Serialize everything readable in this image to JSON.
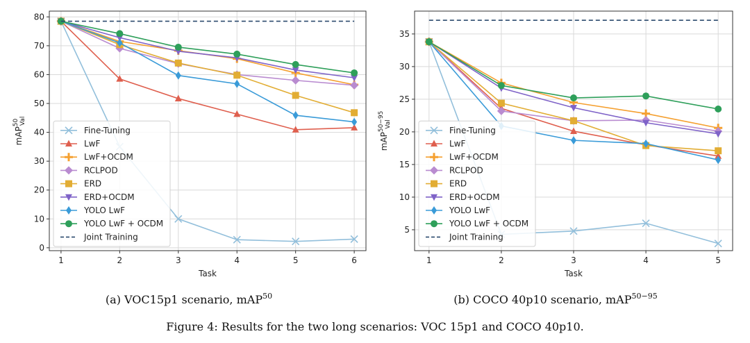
{
  "figure": {
    "caption": "Figure 4: Results for the two long scenarios: VOC 15p1 and COCO 40p10."
  },
  "chart_data": [
    {
      "type": "line",
      "subcaption": {
        "text": "(a) VOC15p1 scenario, mAP",
        "sup": "50"
      },
      "xlabel": "Task",
      "ylabel": {
        "base": "mAP",
        "sup": "50",
        "sub": "Val"
      },
      "x": [
        1,
        2,
        3,
        4,
        5,
        6
      ],
      "xlim": [
        0.8,
        6.2
      ],
      "ylim": [
        -1,
        82
      ],
      "yticks": [
        0,
        10,
        20,
        30,
        40,
        50,
        60,
        70,
        80
      ],
      "xticks": [
        "1",
        "2",
        "3",
        "4",
        "5",
        "6"
      ],
      "grid": true,
      "legend": "lower-left",
      "series": [
        {
          "name": "Fine-Tuning",
          "color": "#92bfdb",
          "marker": "x",
          "values": [
            78.5,
            35,
            10,
            2.8,
            2.2,
            3
          ]
        },
        {
          "name": "LwF",
          "color": "#df5f4e",
          "marker": "triangle-up",
          "values": [
            78.5,
            58.5,
            51.7,
            46.3,
            40.9,
            41.6
          ]
        },
        {
          "name": "LwF+OCDM",
          "color": "#f5a030",
          "marker": "plus",
          "values": [
            78.5,
            71.5,
            68.3,
            65.5,
            60.6,
            56.5
          ]
        },
        {
          "name": "RCLPOD",
          "color": "#b98bd0",
          "marker": "diamond",
          "values": [
            78.5,
            69.1,
            63.8,
            60,
            58,
            56.3
          ]
        },
        {
          "name": "ERD",
          "color": "#e2ad34",
          "marker": "square",
          "values": [
            78.5,
            70.4,
            64,
            59.8,
            52.8,
            46.8
          ]
        },
        {
          "name": "ERD+OCDM",
          "color": "#7f63c8",
          "marker": "triangle-down",
          "values": [
            78.5,
            72.8,
            68.1,
            65.8,
            61.6,
            58.9
          ]
        },
        {
          "name": "YOLO LwF",
          "color": "#3a9bd8",
          "marker": "thin-diamond",
          "values": [
            78.5,
            71,
            59.7,
            56.8,
            45.9,
            43.6
          ]
        },
        {
          "name": "YOLO LwF + OCDM",
          "color": "#2e9f5a",
          "marker": "circle",
          "values": [
            78.5,
            74.2,
            69.5,
            67.1,
            63.5,
            60.6
          ]
        },
        {
          "name": "Joint Training",
          "color": "#2b4a6e",
          "marker": "dashed",
          "values": [
            78.5,
            78.5,
            78.5,
            78.5,
            78.5,
            78.5
          ]
        }
      ]
    },
    {
      "type": "line",
      "subcaption": {
        "text": "(b) COCO 40p10 scenario, mAP",
        "sup": "50−95"
      },
      "xlabel": "Task",
      "ylabel": {
        "base": "mAP",
        "sup": "50−95",
        "sub": "Val"
      },
      "x": [
        1,
        2,
        3,
        4,
        5
      ],
      "xlim": [
        0.8,
        5.2
      ],
      "ylim": [
        1.8,
        38.5
      ],
      "yticks": [
        5,
        10,
        15,
        20,
        25,
        30,
        35
      ],
      "xticks": [
        "1",
        "2",
        "3",
        "4",
        "5"
      ],
      "grid": true,
      "legend": "lower-left",
      "series": [
        {
          "name": "Fine-Tuning",
          "color": "#92bfdb",
          "marker": "x",
          "values": [
            33.8,
            4.3,
            4.8,
            6,
            2.9
          ]
        },
        {
          "name": "LwF",
          "color": "#df5f4e",
          "marker": "triangle-up",
          "values": [
            33.8,
            23.6,
            20.1,
            18,
            16.3
          ]
        },
        {
          "name": "LwF+OCDM",
          "color": "#f5a030",
          "marker": "plus",
          "values": [
            33.8,
            27.5,
            24.5,
            22.8,
            20.6
          ]
        },
        {
          "name": "RCLPOD",
          "color": "#b98bd0",
          "marker": "diamond",
          "values": [
            33.8,
            23.2,
            21.7,
            21.8,
            20.1
          ]
        },
        {
          "name": "ERD",
          "color": "#e2ad34",
          "marker": "square",
          "values": [
            33.8,
            24.4,
            21.7,
            17.9,
            17.1
          ]
        },
        {
          "name": "ERD+OCDM",
          "color": "#7f63c8",
          "marker": "triangle-down",
          "values": [
            33.8,
            26.7,
            23.7,
            21.4,
            19.7
          ]
        },
        {
          "name": "YOLO LwF",
          "color": "#3a9bd8",
          "marker": "thin-diamond",
          "values": [
            33.8,
            20.9,
            18.7,
            18.2,
            15.7
          ]
        },
        {
          "name": "YOLO LwF + OCDM",
          "color": "#2e9f5a",
          "marker": "circle",
          "values": [
            33.8,
            27.1,
            25.2,
            25.5,
            23.5
          ]
        },
        {
          "name": "Joint Training",
          "color": "#2b4a6e",
          "marker": "dashed",
          "values": [
            37.1,
            37.1,
            37.1,
            37.1,
            37.1
          ]
        }
      ]
    }
  ]
}
